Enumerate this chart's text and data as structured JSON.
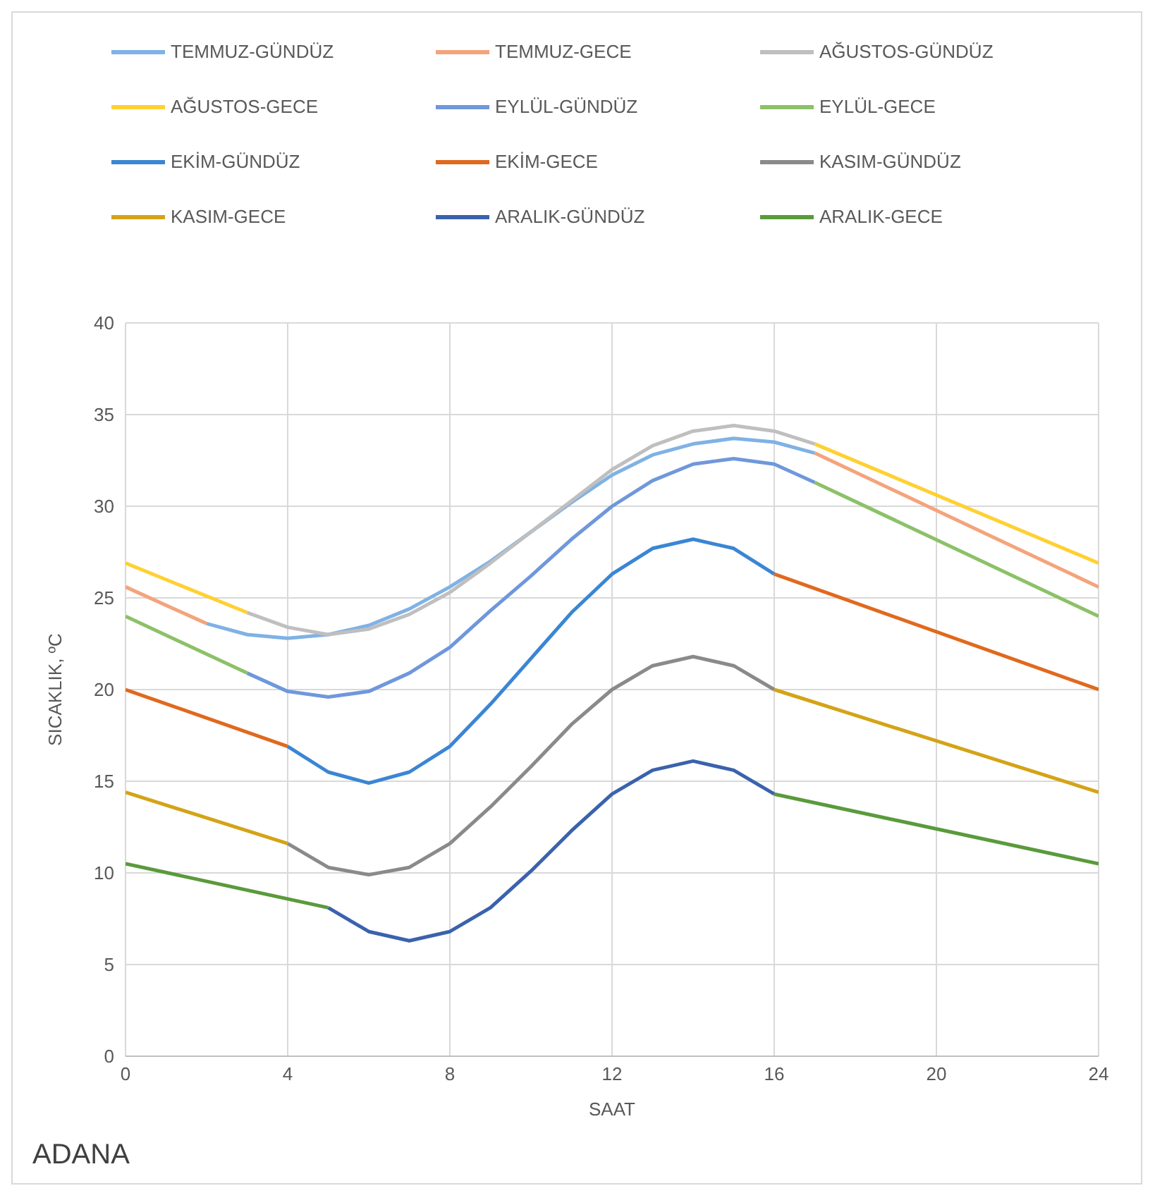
{
  "chart_data": {
    "type": "line",
    "xlabel": "SAAT",
    "ylabel": "SICAKLIK, ºC",
    "annotations": [
      "ADANA"
    ],
    "xlim": [
      0,
      24
    ],
    "xticks": [
      0,
      4,
      8,
      12,
      16,
      20,
      24
    ],
    "ylim": [
      0,
      40
    ],
    "yticks": [
      0,
      5,
      10,
      15,
      20,
      25,
      30,
      35,
      40
    ],
    "grid": true,
    "legend": "top",
    "marker": "none",
    "line_style": "solid",
    "series": [
      {
        "name": "TEMMUZ-GÜNDÜZ",
        "color": "#7fb2e5",
        "x": [
          2,
          3,
          4,
          5,
          6,
          7,
          8,
          9,
          10,
          11,
          12,
          13,
          14,
          15,
          16,
          17
        ],
        "values": [
          23.6,
          23.0,
          22.8,
          23.0,
          23.5,
          24.4,
          25.6,
          27.0,
          28.6,
          30.2,
          31.7,
          32.8,
          33.4,
          33.7,
          33.5,
          32.9
        ]
      },
      {
        "name": "TEMMUZ-GECE",
        "color": "#f4a47c",
        "x": [
          0,
          2,
          17,
          24
        ],
        "values": [
          25.6,
          23.6,
          32.9,
          25.6
        ]
      },
      {
        "name": "AĞUSTOS-GÜNDÜZ",
        "color": "#bfbfbf",
        "x": [
          3,
          4,
          5,
          6,
          7,
          8,
          9,
          10,
          11,
          12,
          13,
          14,
          15,
          16,
          17
        ],
        "values": [
          24.2,
          23.4,
          23.0,
          23.3,
          24.1,
          25.3,
          26.9,
          28.6,
          30.3,
          32.0,
          33.3,
          34.1,
          34.4,
          34.1,
          33.4
        ]
      },
      {
        "name": "AĞUSTOS-GECE",
        "color": "#ffd032",
        "x": [
          0,
          3,
          17,
          24
        ],
        "values": [
          26.9,
          24.2,
          33.4,
          26.9
        ]
      },
      {
        "name": "EYLÜL-GÜNDÜZ",
        "color": "#6f97dc",
        "x": [
          3,
          4,
          5,
          6,
          7,
          8,
          9,
          10,
          11,
          12,
          13,
          14,
          15,
          16,
          17
        ],
        "values": [
          20.9,
          19.9,
          19.6,
          19.9,
          20.9,
          22.3,
          24.3,
          26.2,
          28.2,
          30.0,
          31.4,
          32.3,
          32.6,
          32.3,
          31.3
        ]
      },
      {
        "name": "EYLÜL-GECE",
        "color": "#8cc168",
        "x": [
          0,
          3,
          17,
          24
        ],
        "values": [
          24.0,
          20.9,
          31.3,
          24.0
        ]
      },
      {
        "name": "EKİM-GÜNDÜZ",
        "color": "#3a86d4",
        "x": [
          4,
          5,
          6,
          7,
          8,
          9,
          10,
          11,
          12,
          13,
          14,
          15,
          16
        ],
        "values": [
          16.9,
          15.5,
          14.9,
          15.5,
          16.9,
          19.2,
          21.7,
          24.2,
          26.3,
          27.7,
          28.2,
          27.7,
          26.3
        ]
      },
      {
        "name": "EKİM-GECE",
        "color": "#e0691e",
        "x": [
          0,
          4,
          16,
          24
        ],
        "values": [
          20.0,
          16.9,
          26.3,
          20.0
        ]
      },
      {
        "name": "KASIM-GÜNDÜZ",
        "color": "#8a8a8a",
        "x": [
          4,
          5,
          6,
          7,
          8,
          9,
          10,
          11,
          12,
          13,
          14,
          15,
          16
        ],
        "values": [
          11.6,
          10.3,
          9.9,
          10.3,
          11.6,
          13.6,
          15.8,
          18.1,
          20.0,
          21.3,
          21.8,
          21.3,
          20.0
        ]
      },
      {
        "name": "KASIM-GECE",
        "color": "#d4a317",
        "x": [
          0,
          4,
          16,
          24
        ],
        "values": [
          14.4,
          11.6,
          20.0,
          14.4
        ]
      },
      {
        "name": "ARALIK-GÜNDÜZ",
        "color": "#3a62ad",
        "x": [
          5,
          6,
          7,
          8,
          9,
          10,
          11,
          12,
          13,
          14,
          15,
          16
        ],
        "values": [
          8.1,
          6.8,
          6.3,
          6.8,
          8.1,
          10.1,
          12.3,
          14.3,
          15.6,
          16.1,
          15.6,
          14.3
        ]
      },
      {
        "name": "ARALIK-GECE",
        "color": "#5a9a3c",
        "x": [
          0,
          5,
          16,
          24
        ],
        "values": [
          10.5,
          8.1,
          14.3,
          10.5
        ]
      }
    ]
  }
}
